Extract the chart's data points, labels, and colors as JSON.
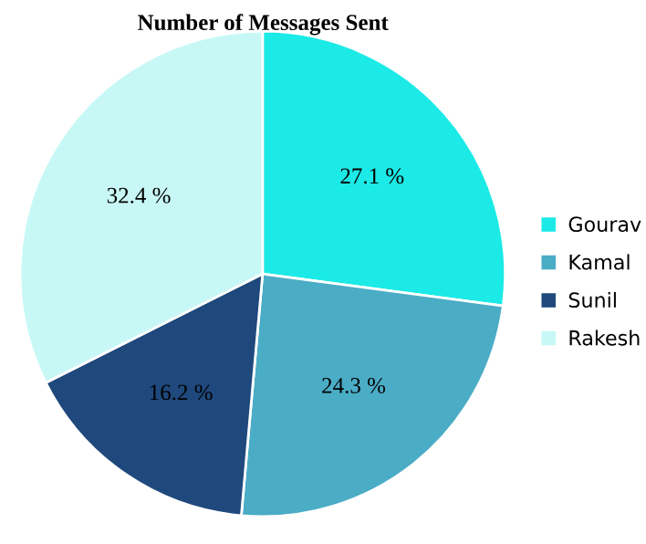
{
  "chart_data": {
    "type": "pie",
    "title": "Number of Messages Sent",
    "categories": [
      "Gourav",
      "Kamal",
      "Sunil",
      "Rakesh"
    ],
    "values": [
      27.1,
      24.3,
      16.2,
      32.4
    ],
    "value_labels": [
      "27.1 %",
      "24.3 %",
      "16.2 %",
      "32.4 %"
    ],
    "colors": [
      "#1ceae6",
      "#4bacc6",
      "#1f497d",
      "#c8f8f6"
    ],
    "legend": "right"
  }
}
